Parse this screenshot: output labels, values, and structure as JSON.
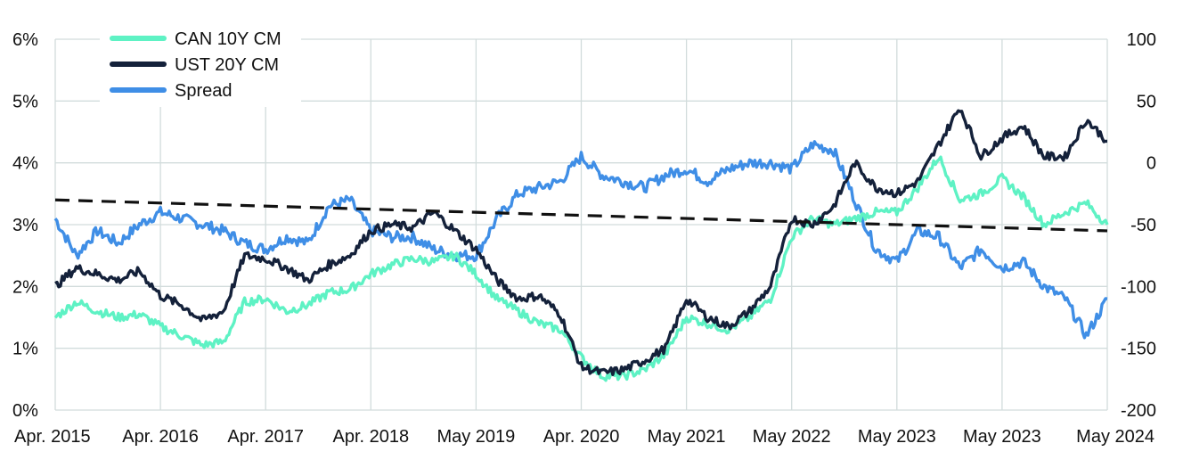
{
  "chart_data": {
    "type": "line",
    "x_tick_labels": [
      "Apr. 2015",
      "Apr. 2016",
      "Apr. 2017",
      "Apr. 2018",
      "May 2019",
      "Apr. 2020",
      "May 2021",
      "May 2022",
      "May 2023",
      "May 2023",
      "May 2024"
    ],
    "y_left": {
      "ticks": [
        "0%",
        "1%",
        "2%",
        "3%",
        "4%",
        "5%",
        "6%"
      ],
      "ylim": [
        0,
        6
      ]
    },
    "y_right": {
      "ticks": [
        "-200",
        "-150",
        "-100",
        "-50",
        "0",
        "50",
        "100"
      ],
      "ylim": [
        -200,
        100
      ]
    },
    "grid": true,
    "legend_placement": "top-left",
    "colors": {
      "can": "#5ef2c4",
      "ust": "#14213a",
      "spread": "#3f8ee6",
      "trend": "#111111",
      "grid": "#d2dcdc"
    },
    "series": [
      {
        "name": "CAN 10Y CM",
        "axis": "left",
        "x": [
          0.0,
          0.2,
          0.4,
          0.6,
          0.8,
          1.0,
          1.2,
          1.4,
          1.6,
          1.8,
          2.0,
          2.2,
          2.4,
          2.6,
          2.8,
          3.0,
          3.2,
          3.4,
          3.6,
          3.8,
          4.0,
          4.2,
          4.4,
          4.6,
          4.8,
          5.0,
          5.2,
          5.4,
          5.6,
          5.8,
          6.0,
          6.2,
          6.4,
          6.6,
          6.8,
          7.0,
          7.2,
          7.4,
          7.6,
          7.8,
          8.0,
          8.2,
          8.4,
          8.6,
          8.8,
          9.0,
          9.2,
          9.4,
          9.6,
          9.8,
          10.0
        ],
        "y": [
          1.5,
          1.75,
          1.6,
          1.5,
          1.55,
          1.35,
          1.2,
          1.05,
          1.1,
          1.75,
          1.8,
          1.6,
          1.7,
          1.9,
          1.95,
          2.2,
          2.35,
          2.45,
          2.4,
          2.5,
          2.2,
          1.8,
          1.6,
          1.4,
          1.3,
          0.85,
          0.55,
          0.55,
          0.65,
          0.9,
          1.5,
          1.4,
          1.3,
          1.5,
          1.8,
          2.8,
          3.1,
          3.0,
          3.1,
          3.2,
          3.2,
          3.6,
          4.1,
          3.4,
          3.5,
          3.75,
          3.45,
          3.0,
          3.2,
          3.35,
          3.0
        ],
        "values": [
          1.5,
          1.75,
          1.6,
          1.5,
          1.55,
          1.35,
          1.2,
          1.05,
          1.1,
          1.75,
          1.8,
          1.6,
          1.7,
          1.9,
          1.95,
          2.2,
          2.35,
          2.45,
          2.4,
          2.5,
          2.2,
          1.8,
          1.6,
          1.4,
          1.3,
          0.85,
          0.55,
          0.55,
          0.65,
          0.9,
          1.5,
          1.4,
          1.3,
          1.5,
          1.8,
          2.8,
          3.1,
          3.0,
          3.1,
          3.2,
          3.2,
          3.6,
          4.1,
          3.4,
          3.5,
          3.75,
          3.45,
          3.0,
          3.2,
          3.35,
          3.0
        ]
      },
      {
        "name": "UST 20Y CM",
        "axis": "left",
        "x": [
          0.0,
          0.2,
          0.4,
          0.6,
          0.8,
          1.0,
          1.2,
          1.4,
          1.6,
          1.8,
          2.0,
          2.2,
          2.4,
          2.6,
          2.8,
          3.0,
          3.2,
          3.4,
          3.6,
          3.8,
          4.0,
          4.2,
          4.4,
          4.6,
          4.8,
          5.0,
          5.2,
          5.4,
          5.6,
          5.8,
          6.0,
          6.2,
          6.4,
          6.6,
          6.8,
          7.0,
          7.2,
          7.4,
          7.6,
          7.8,
          8.0,
          8.2,
          8.4,
          8.6,
          8.8,
          9.0,
          9.2,
          9.4,
          9.6,
          9.8,
          10.0
        ],
        "y": [
          2.0,
          2.3,
          2.2,
          2.1,
          2.25,
          1.85,
          1.7,
          1.45,
          1.6,
          2.5,
          2.45,
          2.3,
          2.1,
          2.35,
          2.5,
          2.9,
          3.0,
          2.95,
          3.2,
          2.9,
          2.6,
          2.1,
          1.8,
          1.85,
          1.55,
          0.7,
          0.6,
          0.65,
          0.8,
          1.0,
          1.8,
          1.5,
          1.35,
          1.6,
          2.0,
          3.1,
          3.0,
          3.3,
          4.0,
          3.6,
          3.5,
          3.7,
          4.3,
          4.9,
          4.1,
          4.4,
          4.6,
          4.1,
          4.1,
          4.7,
          4.35
        ],
        "values": [
          2.0,
          2.3,
          2.2,
          2.1,
          2.25,
          1.85,
          1.7,
          1.45,
          1.6,
          2.5,
          2.45,
          2.3,
          2.1,
          2.35,
          2.5,
          2.9,
          3.0,
          2.95,
          3.2,
          2.9,
          2.6,
          2.1,
          1.8,
          1.85,
          1.55,
          0.7,
          0.6,
          0.65,
          0.8,
          1.0,
          1.8,
          1.5,
          1.35,
          1.6,
          2.0,
          3.1,
          3.0,
          3.3,
          4.0,
          3.6,
          3.5,
          3.7,
          4.3,
          4.9,
          4.1,
          4.4,
          4.6,
          4.1,
          4.1,
          4.7,
          4.35
        ]
      },
      {
        "name": "Spread",
        "axis": "right",
        "x": [
          0.0,
          0.2,
          0.4,
          0.6,
          0.8,
          1.0,
          1.2,
          1.4,
          1.6,
          1.8,
          2.0,
          2.2,
          2.4,
          2.6,
          2.8,
          3.0,
          3.2,
          3.4,
          3.6,
          3.8,
          4.0,
          4.2,
          4.4,
          4.6,
          4.8,
          5.0,
          5.2,
          5.4,
          5.6,
          5.8,
          6.0,
          6.2,
          6.4,
          6.6,
          6.8,
          7.0,
          7.2,
          7.4,
          7.6,
          7.8,
          8.0,
          8.2,
          8.4,
          8.6,
          8.8,
          9.0,
          9.2,
          9.4,
          9.6,
          9.8,
          10.0
        ],
        "y": [
          -45,
          -75,
          -55,
          -65,
          -50,
          -40,
          -45,
          -50,
          -55,
          -65,
          -70,
          -60,
          -65,
          -35,
          -30,
          -55,
          -60,
          -60,
          -70,
          -75,
          -75,
          -45,
          -25,
          -20,
          -15,
          5,
          -10,
          -15,
          -20,
          -10,
          -5,
          -15,
          -5,
          0,
          0,
          -5,
          15,
          10,
          -30,
          -70,
          -80,
          -55,
          -60,
          -85,
          -70,
          -85,
          -80,
          -100,
          -110,
          -140,
          -110
        ],
        "values": [
          -45,
          -75,
          -55,
          -65,
          -50,
          -40,
          -45,
          -50,
          -55,
          -65,
          -70,
          -60,
          -65,
          -35,
          -30,
          -55,
          -60,
          -60,
          -70,
          -75,
          -75,
          -45,
          -25,
          -20,
          -15,
          5,
          -10,
          -15,
          -20,
          -10,
          -5,
          -15,
          -5,
          0,
          0,
          -5,
          15,
          10,
          -30,
          -70,
          -80,
          -55,
          -60,
          -85,
          -70,
          -85,
          -80,
          -100,
          -110,
          -140,
          -110
        ]
      }
    ],
    "trendline": {
      "axis": "left",
      "x": [
        0,
        10
      ],
      "y": [
        3.4,
        2.9
      ]
    },
    "x_tick_index": [
      0,
      1,
      2,
      3,
      4,
      5,
      6,
      7,
      8,
      9,
      10
    ]
  }
}
